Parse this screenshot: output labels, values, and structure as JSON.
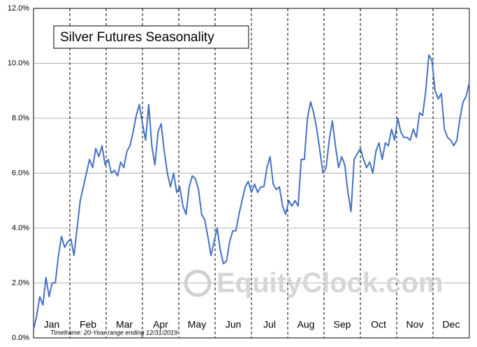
{
  "chart_data": {
    "type": "line",
    "title": "Silver Futures Seasonality",
    "note": "Timeframe: 20-Year range ending 12/31/2019",
    "watermark": "EquityClock.com",
    "months": [
      "Jan",
      "Feb",
      "Mar",
      "Apr",
      "May",
      "Jun",
      "Jul",
      "Aug",
      "Sep",
      "Oct",
      "Nov",
      "Dec"
    ],
    "series": [
      {
        "color": "#4472c4",
        "values": [
          0.3,
          0.8,
          1.5,
          1.2,
          2.2,
          1.5,
          2.0,
          2.0,
          3.0,
          3.7,
          3.3,
          3.5,
          3.6,
          3.0,
          4.0,
          5.0,
          5.5,
          6.0,
          6.5,
          6.2,
          6.9,
          6.6,
          7.0,
          6.3,
          6.5,
          6.0,
          6.1,
          5.9,
          6.4,
          6.2,
          6.8,
          7.0,
          7.5,
          8.1,
          8.5,
          7.8,
          7.2,
          8.5,
          7.0,
          6.3,
          7.5,
          7.8,
          6.8,
          6.0,
          5.5,
          6.0,
          5.3,
          5.5,
          4.8,
          4.5,
          5.5,
          5.9,
          5.8,
          5.4,
          4.5,
          4.3,
          3.7,
          3.0,
          3.5,
          4.0,
          3.2,
          2.7,
          2.8,
          3.5,
          3.9,
          3.9,
          4.5,
          5.0,
          5.5,
          5.7,
          5.3,
          5.6,
          5.3,
          5.5,
          5.5,
          6.2,
          6.6,
          5.6,
          5.4,
          5.5,
          4.8,
          4.5,
          5.0,
          4.8,
          5.0,
          4.8,
          6.5,
          6.5,
          8.0,
          8.6,
          8.2,
          7.6,
          6.8,
          6.0,
          6.2,
          7.2,
          7.9,
          7.0,
          6.2,
          6.6,
          6.3,
          5.3,
          4.6,
          6.5,
          6.7,
          6.9,
          6.5,
          6.2,
          6.4,
          6.0,
          6.8,
          7.1,
          6.5,
          7.1,
          7.0,
          7.6,
          7.2,
          8.0,
          7.5,
          7.3,
          7.3,
          7.2,
          7.6,
          7.3,
          8.2,
          8.1,
          9.0,
          10.3,
          10.1,
          9.0,
          8.7,
          8.9,
          7.6,
          7.3,
          7.2,
          7.0,
          7.2,
          8.0,
          8.6,
          8.8,
          9.3
        ]
      }
    ],
    "ylim": [
      0,
      12
    ],
    "yticks": [
      {
        "value": 0,
        "label": "0.0%"
      },
      {
        "value": 2,
        "label": "2.0%"
      },
      {
        "value": 4,
        "label": "4.0%"
      },
      {
        "value": 6,
        "label": "6.0%"
      },
      {
        "value": 8,
        "label": "8.0%"
      },
      {
        "value": 10,
        "label": "10.0%"
      },
      {
        "value": 12,
        "label": "12.0%"
      }
    ],
    "grid": true
  }
}
